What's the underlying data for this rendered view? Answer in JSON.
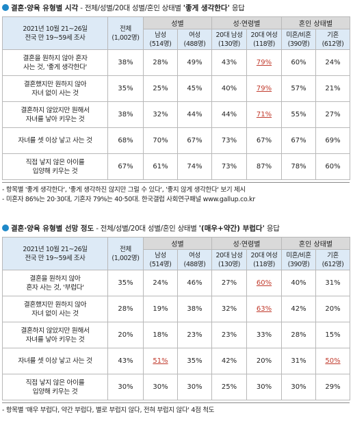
{
  "col_headers": {
    "survey_line1": "2021년 10월 21~26일",
    "survey_line2": "전국 만 19~59세 조사",
    "total_line1": "전체",
    "total_line2": "(1,002명)",
    "group_gender": "성별",
    "group_age_gender": "성·연령별",
    "group_marital": "혼인 상태별",
    "sub": [
      [
        "남성",
        "(514명)"
      ],
      [
        "여성",
        "(488명)"
      ],
      [
        "20대 남성",
        "(130명)"
      ],
      [
        "20대 여성",
        "(118명)"
      ],
      [
        "미혼/비혼",
        "(390명)"
      ],
      [
        "기혼",
        "(612명)"
      ]
    ]
  },
  "section1": {
    "title_bold": "결혼·양육 유형별 시각",
    "title_rest": " - 전체/성별/20대 성별/혼인 상태별 ",
    "title_quote": "'좋게 생각한다'",
    "title_end": " 응답",
    "rows": [
      {
        "label": [
          "결혼을 원하지 않아 혼자",
          "사는 것, '좋게 생각한다'"
        ],
        "values": [
          "38%",
          "28%",
          "49%",
          "43%",
          "79%",
          "60%",
          "24%"
        ],
        "highlight": [
          4
        ]
      },
      {
        "label": [
          "결혼했지만 원하지 않아",
          "자녀 없이 사는 것"
        ],
        "values": [
          "35%",
          "25%",
          "45%",
          "40%",
          "79%",
          "57%",
          "21%"
        ],
        "highlight": [
          4
        ]
      },
      {
        "label": [
          "결혼하지 않았지만 원해서",
          "자녀를 낳아 키우는 것"
        ],
        "values": [
          "38%",
          "32%",
          "44%",
          "44%",
          "71%",
          "55%",
          "27%"
        ],
        "highlight": [
          4
        ]
      },
      {
        "label": [
          "자녀를 셋 이상 낳고 사는 것"
        ],
        "values": [
          "68%",
          "70%",
          "67%",
          "73%",
          "67%",
          "67%",
          "69%"
        ],
        "highlight": []
      },
      {
        "label": [
          "직접 낳지 않은 아이를",
          "입양해 키우는 것"
        ],
        "values": [
          "67%",
          "61%",
          "74%",
          "73%",
          "87%",
          "78%",
          "60%"
        ],
        "highlight": []
      }
    ],
    "notes": [
      "- 항목별 '좋게 생각한다', '좋게 생각하진 않지만 그럴 수 있다', '좋지 않게 생각한다' 보기 제시",
      "- 미혼자 86%는 20·30대, 기혼자 79%는 40·50대. 한국갤럽 사회연구패널 www.gallup.co.kr"
    ]
  },
  "section2": {
    "title_bold": "결혼·양육 유형별 선망 정도",
    "title_rest": " - 전체/성별/20대 성별/혼인 상태별 ",
    "title_quote": "'(매우+약간) 부럽다'",
    "title_end": " 응답",
    "rows": [
      {
        "label": [
          "결혼을 원하지 않아",
          "혼자 사는 것, '부럽다'"
        ],
        "values": [
          "35%",
          "24%",
          "46%",
          "27%",
          "60%",
          "40%",
          "31%"
        ],
        "highlight": [
          4
        ]
      },
      {
        "label": [
          "결혼했지만 원하지 않아",
          "자녀 없이 사는 것"
        ],
        "values": [
          "28%",
          "19%",
          "38%",
          "32%",
          "63%",
          "42%",
          "20%"
        ],
        "highlight": [
          4
        ]
      },
      {
        "label": [
          "결혼하지 않았지만 원해서",
          "자녀를 낳아 키우는 것"
        ],
        "values": [
          "20%",
          "18%",
          "23%",
          "23%",
          "33%",
          "28%",
          "15%"
        ],
        "highlight": []
      },
      {
        "label": [
          "자녀를 셋 이상 낳고 사는 것"
        ],
        "values": [
          "43%",
          "51%",
          "35%",
          "42%",
          "20%",
          "31%",
          "50%"
        ],
        "highlight": [
          1,
          6
        ]
      },
      {
        "label": [
          "직접 낳지 않은 아이를",
          "입양해 키우는 것"
        ],
        "values": [
          "30%",
          "30%",
          "30%",
          "25%",
          "30%",
          "30%",
          "29%"
        ],
        "highlight": []
      }
    ],
    "notes": [
      "- 항목별 '매우 부럽다, 약간 부럽다, 별로 부럽지 않다, 전혀 부럽지 않다' 4점 척도"
    ]
  },
  "colors": {
    "bullet": "#1e88c8",
    "header_gray": "#d9d9d9",
    "header_blue": "#ddeaf6",
    "highlight_red": "#c0392b"
  }
}
